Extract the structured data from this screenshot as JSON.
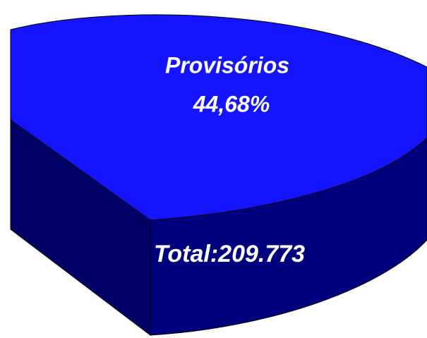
{
  "chart_data": {
    "type": "pie",
    "categories": [
      "Provisórios"
    ],
    "values": [
      44.68
    ],
    "value_labels": [
      "44,68%"
    ],
    "colors": [
      "#1414ff"
    ],
    "side_colors": [
      "#00007f"
    ],
    "annotation": "Total:209.773"
  }
}
